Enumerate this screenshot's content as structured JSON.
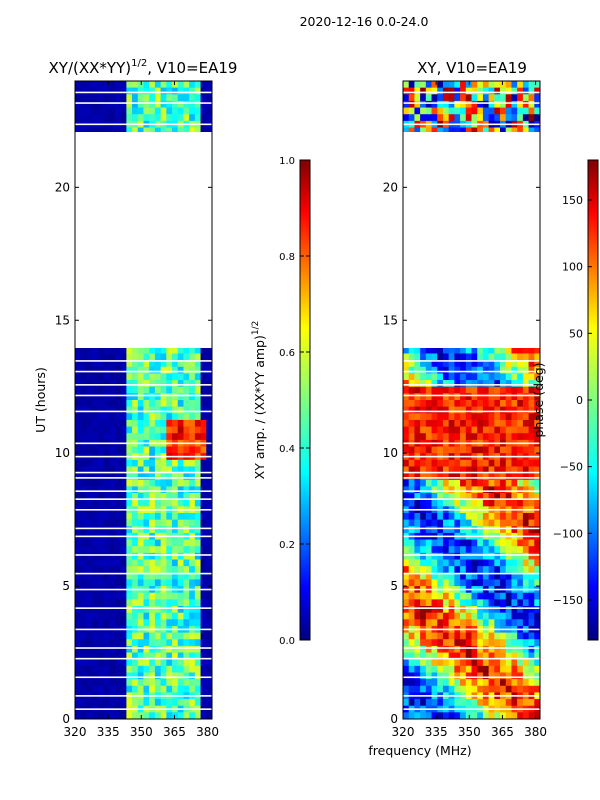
{
  "figure_title": "2020-12-16 0.0-24.0",
  "shared_xlabel": "frequency (MHz)",
  "colors": {
    "jet": [
      "#00007f",
      "#0000ff",
      "#007fff",
      "#00ffff",
      "#7fff7f",
      "#ffff00",
      "#ff7f00",
      "#ff0000",
      "#7f0000"
    ]
  },
  "chart_data": [
    {
      "type": "heatmap",
      "title": "XY/(XX*YY)",
      "title_sup": "1/2",
      "title_suffix": ", V10=EA19",
      "xlabel": "",
      "ylabel": "UT (hours)",
      "xlim": [
        320,
        382
      ],
      "ylim": [
        0,
        24
      ],
      "xticks": [
        320,
        335,
        350,
        365,
        380
      ],
      "yticks": [
        0,
        5,
        10,
        15,
        20
      ],
      "colorbar": {
        "label": "XY amp. / (XX*YY amp)",
        "label_sup": "1/2",
        "range": [
          0.0,
          1.0
        ],
        "ticks": [
          "0.0",
          "0.2",
          "0.4",
          "0.6",
          "0.8",
          "1.0"
        ]
      },
      "data_gap_hours": [
        [
          13.9,
          22.0
        ]
      ],
      "bright_band_mhz": [
        [
          342,
          378
        ]
      ],
      "peak_region": {
        "x": [
          362,
          380
        ],
        "y": [
          9.8,
          11.2
        ],
        "value": 0.95
      }
    },
    {
      "type": "heatmap",
      "title": "XY, V10=EA19",
      "xlabel": "frequency (MHz)",
      "ylabel": "",
      "xlim": [
        320,
        382
      ],
      "ylim": [
        0,
        24
      ],
      "xticks": [
        320,
        335,
        350,
        365,
        380
      ],
      "yticks": [
        0,
        5,
        10,
        15,
        20
      ],
      "colorbar": {
        "label": "phase (deg)",
        "range": [
          -180,
          180
        ],
        "ticks": [
          "150",
          "100",
          "50",
          "0",
          "−50",
          "−100",
          "−150"
        ]
      },
      "data_gap_hours": [
        [
          13.9,
          22.0
        ]
      ]
    }
  ]
}
